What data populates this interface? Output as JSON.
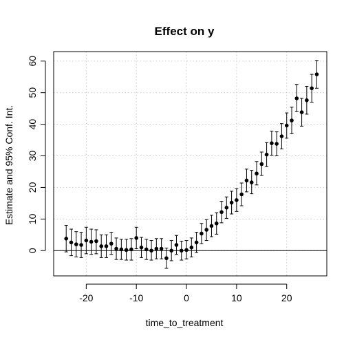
{
  "chart_data": {
    "type": "scatter",
    "title": "Effect on y",
    "xlabel": "time_to_treatment",
    "ylabel": "Estimate and 95% Conf. Int.",
    "xlim": [
      -26.5,
      28
    ],
    "ylim": [
      -8,
      63
    ],
    "x_ticks": [
      -20,
      -10,
      0,
      10,
      20
    ],
    "y_ticks": [
      0,
      10,
      20,
      30,
      40,
      50,
      60
    ],
    "grid": true,
    "reference_line_y": 0,
    "series": [
      {
        "points": [
          {
            "x": -24,
            "y": 3.8,
            "lo": -0.4,
            "hi": 8.0
          },
          {
            "x": -23,
            "y": 2.6,
            "lo": -1.6,
            "hi": 6.8
          },
          {
            "x": -22,
            "y": 2.0,
            "lo": -2.0,
            "hi": 6.0
          },
          {
            "x": -21,
            "y": 1.8,
            "lo": -2.2,
            "hi": 5.8
          },
          {
            "x": -20,
            "y": 3.2,
            "lo": -1.0,
            "hi": 7.4
          },
          {
            "x": -19,
            "y": 2.8,
            "lo": -1.2,
            "hi": 6.8
          },
          {
            "x": -18,
            "y": 3.0,
            "lo": -1.0,
            "hi": 6.6
          },
          {
            "x": -17,
            "y": 1.4,
            "lo": -2.2,
            "hi": 5.0
          },
          {
            "x": -16,
            "y": 1.4,
            "lo": -2.2,
            "hi": 5.0
          },
          {
            "x": -15,
            "y": 2.2,
            "lo": -1.2,
            "hi": 5.8
          },
          {
            "x": -14,
            "y": 0.6,
            "lo": -2.8,
            "hi": 4.0
          },
          {
            "x": -13,
            "y": 0.4,
            "lo": -2.8,
            "hi": 3.6
          },
          {
            "x": -12,
            "y": 0.2,
            "lo": -3.0,
            "hi": 3.6
          },
          {
            "x": -11,
            "y": 0.4,
            "lo": -3.0,
            "hi": 3.8
          },
          {
            "x": -10,
            "y": 4.0,
            "lo": 0.6,
            "hi": 7.4
          },
          {
            "x": -9,
            "y": 1.0,
            "lo": -2.2,
            "hi": 4.2
          },
          {
            "x": -8,
            "y": 0.4,
            "lo": -2.8,
            "hi": 3.6
          },
          {
            "x": -7,
            "y": 0.0,
            "lo": -3.0,
            "hi": 3.2
          },
          {
            "x": -6,
            "y": 0.6,
            "lo": -2.6,
            "hi": 3.8
          },
          {
            "x": -5,
            "y": 0.6,
            "lo": -2.6,
            "hi": 3.8
          },
          {
            "x": -4,
            "y": -2.4,
            "lo": -5.6,
            "hi": 0.8
          },
          {
            "x": -3,
            "y": 0.0,
            "lo": -3.2,
            "hi": 3.2
          },
          {
            "x": -2,
            "y": 1.8,
            "lo": -1.2,
            "hi": 4.8
          },
          {
            "x": -1,
            "y": 0.0,
            "lo": -3.0,
            "hi": 3.0
          },
          {
            "x": 0,
            "y": 0.2,
            "lo": -2.6,
            "hi": 3.2
          },
          {
            "x": 1,
            "y": 1.0,
            "lo": -2.0,
            "hi": 4.0
          },
          {
            "x": 2,
            "y": 2.6,
            "lo": -0.6,
            "hi": 5.8
          },
          {
            "x": 3,
            "y": 5.4,
            "lo": 2.2,
            "hi": 8.6
          },
          {
            "x": 4,
            "y": 6.6,
            "lo": 3.2,
            "hi": 9.8
          },
          {
            "x": 5,
            "y": 7.8,
            "lo": 4.4,
            "hi": 11.2
          },
          {
            "x": 6,
            "y": 8.6,
            "lo": 5.2,
            "hi": 12.0
          },
          {
            "x": 7,
            "y": 12.2,
            "lo": 8.8,
            "hi": 15.6
          },
          {
            "x": 8,
            "y": 13.6,
            "lo": 10.2,
            "hi": 17.0
          },
          {
            "x": 9,
            "y": 15.2,
            "lo": 11.6,
            "hi": 18.8
          },
          {
            "x": 10,
            "y": 16.0,
            "lo": 12.4,
            "hi": 19.6
          },
          {
            "x": 11,
            "y": 17.8,
            "lo": 14.2,
            "hi": 21.4
          },
          {
            "x": 12,
            "y": 22.2,
            "lo": 18.6,
            "hi": 25.8
          },
          {
            "x": 13,
            "y": 21.6,
            "lo": 18.0,
            "hi": 25.4
          },
          {
            "x": 14,
            "y": 24.4,
            "lo": 20.8,
            "hi": 28.2
          },
          {
            "x": 15,
            "y": 27.4,
            "lo": 23.8,
            "hi": 31.2
          },
          {
            "x": 16,
            "y": 30.4,
            "lo": 26.6,
            "hi": 34.2
          },
          {
            "x": 17,
            "y": 34.0,
            "lo": 30.2,
            "hi": 37.8
          },
          {
            "x": 18,
            "y": 33.8,
            "lo": 30.0,
            "hi": 37.6
          },
          {
            "x": 19,
            "y": 36.2,
            "lo": 32.2,
            "hi": 40.2
          },
          {
            "x": 20,
            "y": 39.6,
            "lo": 35.6,
            "hi": 43.6
          },
          {
            "x": 21,
            "y": 41.2,
            "lo": 37.0,
            "hi": 45.4
          },
          {
            "x": 22,
            "y": 48.2,
            "lo": 44.0,
            "hi": 52.6
          },
          {
            "x": 23,
            "y": 43.8,
            "lo": 39.4,
            "hi": 48.2
          },
          {
            "x": 24,
            "y": 47.6,
            "lo": 43.2,
            "hi": 52.0
          },
          {
            "x": 25,
            "y": 51.4,
            "lo": 47.0,
            "hi": 55.8
          },
          {
            "x": 26,
            "y": 55.8,
            "lo": 51.4,
            "hi": 60.2
          }
        ]
      }
    ]
  }
}
